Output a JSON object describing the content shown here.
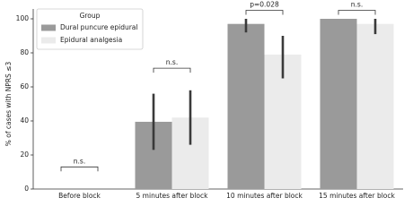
{
  "chart_data": {
    "type": "bar",
    "y_label": "% of cases with NPRS ≤3",
    "categories": [
      "Before block",
      "5 minutes after block",
      "10 minutes after block",
      "15 minutes after block"
    ],
    "legend_title": "Group",
    "legend_position": "upper left",
    "series": [
      {
        "name": "Dural puncure epidural",
        "color": "#9a9a9a",
        "values": [
          0,
          39.5,
          97,
          100
        ],
        "error_low": [
          null,
          23,
          92,
          null
        ],
        "error_high": [
          null,
          56,
          100,
          null
        ]
      },
      {
        "name": "Epidural analgesia",
        "color": "#ebebeb",
        "values": [
          0,
          42,
          79,
          97
        ],
        "error_low": [
          null,
          26,
          65,
          91
        ],
        "error_high": [
          null,
          58,
          90,
          100
        ]
      }
    ],
    "significance": [
      "n.s.",
      "n.s.",
      "p=0.028",
      "n.s."
    ],
    "ylim": [
      0,
      100
    ],
    "yticks": [
      0,
      20,
      40,
      60,
      80,
      100
    ]
  }
}
